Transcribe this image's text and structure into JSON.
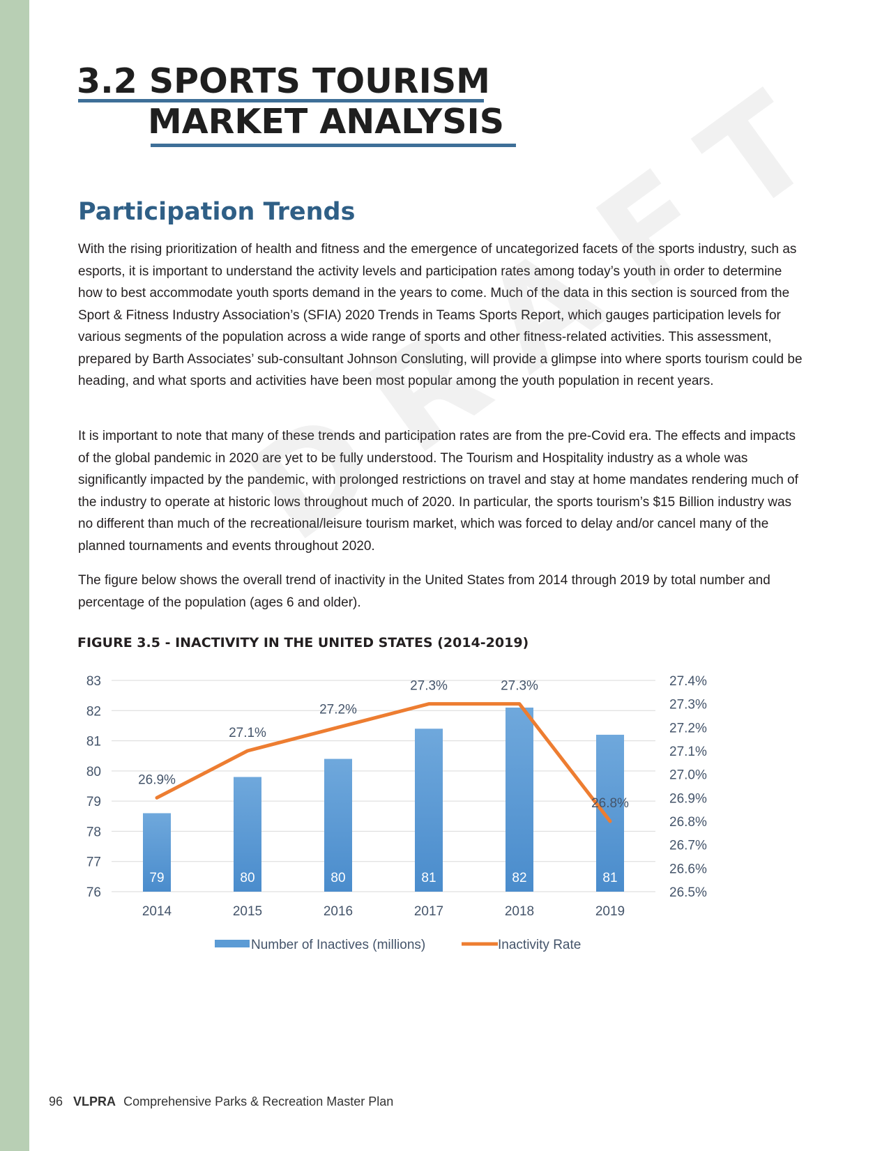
{
  "page": {
    "title_line1": "3.2 SPORTS TOURISM",
    "title_line2": "MARKET ANALYSIS",
    "section_heading": "Participation Trends",
    "paragraphs": [
      "With the rising prioritization of health and fitness and the emergence of uncategorized facets of the sports industry, such as esports, it is important to understand the activity levels and participation rates among today’s youth in order to determine how to best accommodate youth sports demand in the years to come. Much of the data in this section is sourced from the Sport & Fitness Industry Association’s (SFIA) 2020 Trends in Teams Sports Report, which gauges participation levels for various segments of the population across a wide range of sports and other fitness-related activities. This assessment, prepared by Barth Associates’ sub-consultant Johnson Consluting, will provide a glimpse into where sports tourism could be heading, and what sports and activities have been most popular among the youth population in recent years.",
      "It is important to note that many of these trends and participation rates are from the pre-Covid era. The effects and impacts of the global pandemic in 2020 are yet to be fully understood. The Tourism and Hospitality industry as a whole was significantly impacted by the pandemic, with prolonged restrictions on travel and stay at home mandates rendering much of the industry to operate at historic lows throughout much of 2020. In particular, the sports tourism’s $15 Billion industry was no different than much of the recreational/leisure tourism market, which was forced to delay and/or cancel many of the planned tournaments and events throughout 2020.",
      "The figure below shows the overall trend of inactivity in the United States from 2014 through 2019 by total number and percentage of the population (ages 6 and older)."
    ],
    "figure_title": "FIGURE 3.5 - INACTIVITY IN THE UNITED STATES (2014-2019)",
    "watermark": "DRAFT",
    "footer": {
      "page_number": "96",
      "brand": "VLPRA",
      "doc_title": "Comprehensive Parks & Recreation Master Plan"
    },
    "colors": {
      "accent": "#2f5f86",
      "side_strip": "#b8cfb4",
      "bar": "#5b9bd5",
      "line": "#ed7d31"
    }
  },
  "chart_data": {
    "type": "bar",
    "categories": [
      "2014",
      "2015",
      "2016",
      "2017",
      "2018",
      "2019"
    ],
    "series": [
      {
        "name": "Number of Inactives (millions)",
        "type": "bar",
        "axis": "left",
        "values": [
          78.6,
          79.8,
          80.4,
          81.4,
          82.1,
          81.2
        ],
        "labels": [
          "79",
          "80",
          "80",
          "81",
          "82",
          "81"
        ]
      },
      {
        "name": "Inactivity Rate",
        "type": "line",
        "axis": "right",
        "values": [
          26.9,
          27.1,
          27.2,
          27.3,
          27.3,
          26.8
        ],
        "labels": [
          "26.9%",
          "27.1%",
          "27.2%",
          "27.3%",
          "27.3%",
          "26.8%"
        ]
      }
    ],
    "y_left": {
      "min": 76,
      "max": 83,
      "ticks": [
        "83",
        "82",
        "81",
        "80",
        "79",
        "78",
        "77",
        "76"
      ]
    },
    "y_right": {
      "min": 26.5,
      "max": 27.4,
      "ticks": [
        "27.4%",
        "27.3%",
        "27.2%",
        "27.1%",
        "27.0%",
        "26.9%",
        "26.8%",
        "26.7%",
        "26.6%",
        "26.5%"
      ]
    },
    "grid": true,
    "legend": "bottom"
  }
}
